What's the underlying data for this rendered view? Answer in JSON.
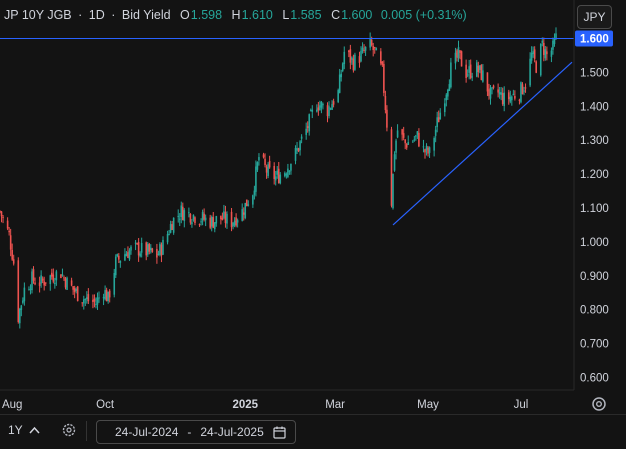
{
  "header": {
    "symbol": "JP 10Y JGB",
    "sep1": "·",
    "interval": "1D",
    "sep2": "·",
    "source": "Bid Yield",
    "open_label": "O",
    "open": "1.598",
    "high_label": "H",
    "high": "1.610",
    "low_label": "L",
    "low": "1.585",
    "close_label": "C",
    "close": "1.600",
    "change": "0.005 (+0.31%)"
  },
  "currency": "JPY",
  "footer": {
    "period": "1Y",
    "date_from": "24-Jul-2024",
    "date_dash": "-",
    "date_to": "24-Jul-2025"
  },
  "colors": {
    "background": "#131313",
    "up": "#26a69a",
    "down": "#ef5350",
    "trendline": "#2962ff",
    "last_price": "#2962ff",
    "axis_text": "#d1d4dc"
  },
  "chart_data": {
    "type": "candlestick",
    "title": "JP 10Y JGB · 1D · Bid Yield",
    "ylim": [
      0.55,
      1.63
    ],
    "y_ticks": [
      "0.600",
      "0.700",
      "0.800",
      "0.900",
      "1.000",
      "1.100",
      "1.200",
      "1.300",
      "1.400",
      "1.500",
      "1.600"
    ],
    "x_ticks": [
      "Aug",
      "Oct",
      "2025",
      "Mar",
      "May",
      "Jul"
    ],
    "last_price": "1.600",
    "grid": false,
    "series_path": [
      [
        "2024-07-24",
        1.09
      ],
      [
        "2024-07-30",
        1.02
      ],
      [
        "2024-08-02",
        0.94
      ],
      [
        "2024-08-05",
        0.78
      ],
      [
        "2024-08-09",
        0.86
      ],
      [
        "2024-08-14",
        0.89
      ],
      [
        "2024-08-20",
        0.88
      ],
      [
        "2024-08-27",
        0.9
      ],
      [
        "2024-09-02",
        0.91
      ],
      [
        "2024-09-06",
        0.88
      ],
      [
        "2024-09-12",
        0.85
      ],
      [
        "2024-09-18",
        0.83
      ],
      [
        "2024-09-25",
        0.82
      ],
      [
        "2024-09-30",
        0.86
      ],
      [
        "2024-10-03",
        0.83
      ],
      [
        "2024-10-08",
        0.94
      ],
      [
        "2024-10-15",
        0.97
      ],
      [
        "2024-10-22",
        0.98
      ],
      [
        "2024-10-29",
        0.97
      ],
      [
        "2024-11-04",
        0.96
      ],
      [
        "2024-11-08",
        0.99
      ],
      [
        "2024-11-14",
        1.06
      ],
      [
        "2024-11-20",
        1.09
      ],
      [
        "2024-11-27",
        1.08
      ],
      [
        "2024-12-03",
        1.07
      ],
      [
        "2024-12-10",
        1.06
      ],
      [
        "2024-12-16",
        1.07
      ],
      [
        "2024-12-23",
        1.06
      ],
      [
        "2024-12-30",
        1.09
      ],
      [
        "2025-01-06",
        1.15
      ],
      [
        "2025-01-10",
        1.25
      ],
      [
        "2025-01-15",
        1.21
      ],
      [
        "2025-01-21",
        1.19
      ],
      [
        "2025-01-27",
        1.21
      ],
      [
        "2025-02-03",
        1.26
      ],
      [
        "2025-02-10",
        1.33
      ],
      [
        "2025-02-17",
        1.41
      ],
      [
        "2025-02-24",
        1.39
      ],
      [
        "2025-03-03",
        1.44
      ],
      [
        "2025-03-07",
        1.56
      ],
      [
        "2025-03-13",
        1.53
      ],
      [
        "2025-03-18",
        1.55
      ],
      [
        "2025-03-24",
        1.58
      ],
      [
        "2025-03-27",
        1.56
      ],
      [
        "2025-04-01",
        1.5
      ],
      [
        "2025-04-04",
        1.35
      ],
      [
        "2025-04-07",
        1.12
      ],
      [
        "2025-04-09",
        1.27
      ],
      [
        "2025-04-11",
        1.33
      ],
      [
        "2025-04-16",
        1.29
      ],
      [
        "2025-04-21",
        1.3
      ],
      [
        "2025-04-24",
        1.31
      ],
      [
        "2025-04-28",
        1.27
      ],
      [
        "2025-05-02",
        1.26
      ],
      [
        "2025-05-07",
        1.35
      ],
      [
        "2025-05-13",
        1.45
      ],
      [
        "2025-05-16",
        1.51
      ],
      [
        "2025-05-21",
        1.55
      ],
      [
        "2025-05-26",
        1.5
      ],
      [
        "2025-06-02",
        1.51
      ],
      [
        "2025-06-06",
        1.49
      ],
      [
        "2025-06-11",
        1.43
      ],
      [
        "2025-06-16",
        1.44
      ],
      [
        "2025-06-20",
        1.42
      ],
      [
        "2025-06-25",
        1.43
      ],
      [
        "2025-06-30",
        1.44
      ],
      [
        "2025-07-04",
        1.47
      ],
      [
        "2025-07-08",
        1.55
      ],
      [
        "2025-07-11",
        1.52
      ],
      [
        "2025-07-15",
        1.58
      ],
      [
        "2025-07-18",
        1.55
      ],
      [
        "2025-07-22",
        1.57
      ],
      [
        "2025-07-24",
        1.6
      ]
    ],
    "trendline": [
      [
        "2025-04-08",
        1.05
      ],
      [
        "2025-07-24",
        1.53
      ]
    ]
  }
}
